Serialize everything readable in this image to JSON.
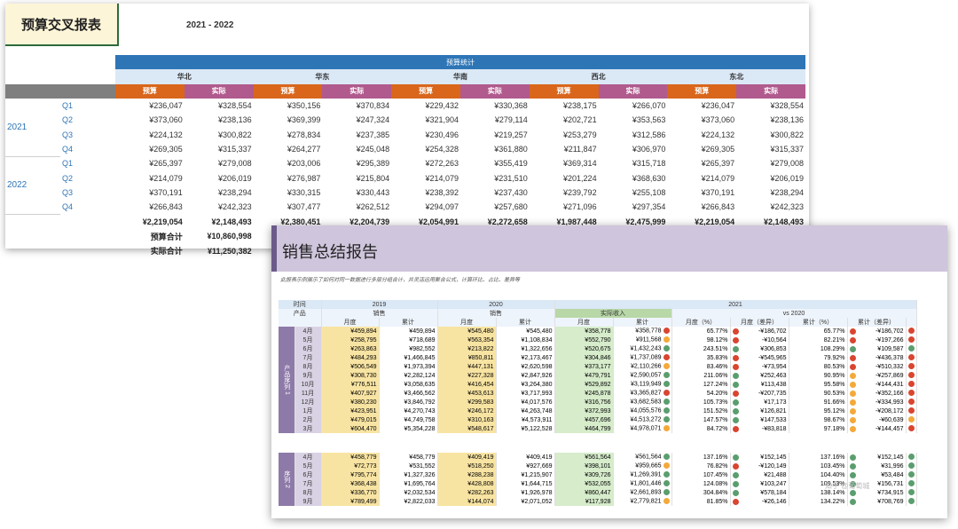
{
  "sheet1": {
    "title": "预算交叉报表",
    "range": "2021 - 2022",
    "banner": "预算统计",
    "regions": [
      "华北",
      "华东",
      "华南",
      "西北",
      "东北"
    ],
    "budget_label": "预算",
    "actual_label": "实际",
    "years": [
      {
        "year": "2021",
        "rows": [
          {
            "q": "Q1",
            "v": [
              "¥236,047",
              "¥328,554",
              "¥350,156",
              "¥370,834",
              "¥229,432",
              "¥330,368",
              "¥238,175",
              "¥266,070",
              "¥236,047",
              "¥328,554"
            ]
          },
          {
            "q": "Q2",
            "v": [
              "¥373,060",
              "¥238,136",
              "¥369,399",
              "¥247,324",
              "¥321,904",
              "¥279,114",
              "¥202,721",
              "¥353,563",
              "¥373,060",
              "¥238,136"
            ]
          },
          {
            "q": "Q3",
            "v": [
              "¥224,132",
              "¥300,822",
              "¥278,834",
              "¥237,385",
              "¥230,496",
              "¥219,257",
              "¥253,279",
              "¥312,586",
              "¥224,132",
              "¥300,822"
            ]
          },
          {
            "q": "Q4",
            "v": [
              "¥269,305",
              "¥315,337",
              "¥264,277",
              "¥245,048",
              "¥254,328",
              "¥361,880",
              "¥211,847",
              "¥306,970",
              "¥269,305",
              "¥315,337"
            ]
          }
        ]
      },
      {
        "year": "2022",
        "rows": [
          {
            "q": "Q1",
            "v": [
              "¥265,397",
              "¥279,008",
              "¥203,006",
              "¥295,389",
              "¥272,263",
              "¥355,419",
              "¥369,314",
              "¥315,718",
              "¥265,397",
              "¥279,008"
            ]
          },
          {
            "q": "Q2",
            "v": [
              "¥214,079",
              "¥206,019",
              "¥276,987",
              "¥215,804",
              "¥214,079",
              "¥231,510",
              "¥201,224",
              "¥368,630",
              "¥214,079",
              "¥206,019"
            ]
          },
          {
            "q": "Q3",
            "v": [
              "¥370,191",
              "¥238,294",
              "¥330,315",
              "¥330,443",
              "¥238,392",
              "¥237,430",
              "¥239,792",
              "¥255,108",
              "¥370,191",
              "¥238,294"
            ]
          },
          {
            "q": "Q4",
            "v": [
              "¥266,843",
              "¥242,323",
              "¥307,477",
              "¥262,512",
              "¥294,097",
              "¥257,680",
              "¥271,096",
              "¥297,354",
              "¥266,843",
              "¥242,323"
            ]
          }
        ]
      }
    ],
    "totals": [
      "¥2,219,054",
      "¥2,148,493",
      "¥2,380,451",
      "¥2,204,739",
      "¥2,054,991",
      "¥2,272,658",
      "¥1,987,448",
      "¥2,475,999",
      "¥2,219,054",
      "¥2,148,493"
    ],
    "budget_total_label": "预算合计",
    "budget_total": "¥10,860,998",
    "actual_total_label": "实际合计",
    "actual_total": "¥11,250,382"
  },
  "sheet2": {
    "title": "销售总结报告",
    "description": "此报表示例展示了如何对同一数据进行多层分组合计，并灵活运用聚合公式，计算环比、占比、差异等",
    "hdr_time": "时间",
    "hdr_product": "产品",
    "y2019": "2019",
    "y2020": "2020",
    "y2021": "2021",
    "sales": "销售",
    "actual_income": "实际收入",
    "vs2020": "vs 2020",
    "col_month": "月度",
    "col_cum": "累计",
    "col_mpct": "月度（%）",
    "col_mdiff": "月度（差异）",
    "col_cpct": "累计（%）",
    "col_cdiff": "累计（差异）",
    "group1_label": "产品序列 1",
    "group2_label": "序列 2",
    "group1": [
      {
        "m": "4月",
        "a": "¥459,894",
        "b": "¥459,894",
        "c": "¥545,480",
        "d": "¥545,480",
        "e": "¥358,778",
        "f": "¥358,778",
        "g": "65.77%",
        "h": "-¥186,702",
        "i": "65.77%",
        "j": "-¥186,702",
        "d1": "r",
        "d2": "r",
        "d3": "r",
        "d4": "r"
      },
      {
        "m": "5月",
        "a": "¥258,795",
        "b": "¥718,689",
        "c": "¥563,354",
        "d": "¥1,108,834",
        "e": "¥552,790",
        "f": "¥911,568",
        "g": "98.12%",
        "h": "-¥10,564",
        "i": "82.21%",
        "j": "-¥197,266",
        "d1": "o",
        "d2": "r",
        "d3": "r",
        "d4": "r"
      },
      {
        "m": "6月",
        "a": "¥263,863",
        "b": "¥982,552",
        "c": "¥213,822",
        "d": "¥1,322,656",
        "e": "¥520,675",
        "f": "¥1,432,243",
        "g": "243.51%",
        "h": "¥306,853",
        "i": "108.29%",
        "j": "¥109,587",
        "d1": "g",
        "d2": "g",
        "d3": "g",
        "d4": "g"
      },
      {
        "m": "7月",
        "a": "¥484,293",
        "b": "¥1,466,845",
        "c": "¥850,811",
        "d": "¥2,173,467",
        "e": "¥304,846",
        "f": "¥1,737,089",
        "g": "35.83%",
        "h": "-¥545,965",
        "i": "79.92%",
        "j": "-¥436,378",
        "d1": "r",
        "d2": "r",
        "d3": "r",
        "d4": "r"
      },
      {
        "m": "8月",
        "a": "¥506,549",
        "b": "¥1,973,394",
        "c": "¥447,131",
        "d": "¥2,620,598",
        "e": "¥373,177",
        "f": "¥2,110,266",
        "g": "83.46%",
        "h": "-¥73,954",
        "i": "80.53%",
        "j": "-¥510,332",
        "d1": "o",
        "d2": "r",
        "d3": "r",
        "d4": "r"
      },
      {
        "m": "9月",
        "a": "¥308,730",
        "b": "¥2,282,124",
        "c": "¥227,328",
        "d": "¥2,847,926",
        "e": "¥479,791",
        "f": "¥2,590,057",
        "g": "211.06%",
        "h": "¥252,463",
        "i": "90.95%",
        "j": "-¥257,869",
        "d1": "g",
        "d2": "g",
        "d3": "o",
        "d4": "r"
      },
      {
        "m": "10月",
        "a": "¥776,511",
        "b": "¥3,058,635",
        "c": "¥416,454",
        "d": "¥3,264,380",
        "e": "¥529,892",
        "f": "¥3,119,949",
        "g": "127.24%",
        "h": "¥113,438",
        "i": "95.58%",
        "j": "-¥144,431",
        "d1": "g",
        "d2": "g",
        "d3": "o",
        "d4": "r"
      },
      {
        "m": "11月",
        "a": "¥407,927",
        "b": "¥3,466,562",
        "c": "¥453,613",
        "d": "¥3,717,993",
        "e": "¥245,878",
        "f": "¥3,365,827",
        "g": "54.20%",
        "h": "-¥207,735",
        "i": "90.53%",
        "j": "-¥352,166",
        "d1": "r",
        "d2": "r",
        "d3": "o",
        "d4": "r"
      },
      {
        "m": "12月",
        "a": "¥380,230",
        "b": "¥3,846,792",
        "c": "¥299,583",
        "d": "¥4,017,576",
        "e": "¥316,756",
        "f": "¥3,682,583",
        "g": "105.73%",
        "h": "¥17,173",
        "i": "91.66%",
        "j": "-¥334,993",
        "d1": "g",
        "d2": "g",
        "d3": "o",
        "d4": "r"
      },
      {
        "m": "1月",
        "a": "¥423,951",
        "b": "¥4,270,743",
        "c": "¥246,172",
        "d": "¥4,263,748",
        "e": "¥372,993",
        "f": "¥4,055,576",
        "g": "151.52%",
        "h": "¥126,821",
        "i": "95.12%",
        "j": "-¥208,172",
        "d1": "g",
        "d2": "g",
        "d3": "o",
        "d4": "r"
      },
      {
        "m": "2月",
        "a": "¥479,015",
        "b": "¥4,749,758",
        "c": "¥310,163",
        "d": "¥4,573,911",
        "e": "¥457,696",
        "f": "¥4,513,272",
        "g": "147.57%",
        "h": "¥147,533",
        "i": "98.67%",
        "j": "-¥60,639",
        "d1": "g",
        "d2": "g",
        "d3": "o",
        "d4": "o"
      },
      {
        "m": "3月",
        "a": "¥604,470",
        "b": "¥5,354,228",
        "c": "¥548,617",
        "d": "¥5,122,528",
        "e": "¥464,799",
        "f": "¥4,978,071",
        "g": "84.72%",
        "h": "-¥83,818",
        "i": "97.18%",
        "j": "-¥144,457",
        "d1": "o",
        "d2": "r",
        "d3": "o",
        "d4": "r"
      }
    ],
    "group2": [
      {
        "m": "4月",
        "a": "¥458,779",
        "b": "¥458,779",
        "c": "¥409,419",
        "d": "¥409,419",
        "e": "¥561,564",
        "f": "¥561,564",
        "g": "137.16%",
        "h": "¥152,145",
        "i": "137.16%",
        "j": "¥152,145",
        "d1": "g",
        "d2": "g",
        "d3": "g",
        "d4": "g"
      },
      {
        "m": "5月",
        "a": "¥72,773",
        "b": "¥531,552",
        "c": "¥518,250",
        "d": "¥927,669",
        "e": "¥398,101",
        "f": "¥959,665",
        "g": "76.82%",
        "h": "-¥120,149",
        "i": "103.45%",
        "j": "¥31,996",
        "d1": "o",
        "d2": "r",
        "d3": "g",
        "d4": "g"
      },
      {
        "m": "6月",
        "a": "¥795,774",
        "b": "¥1,327,326",
        "c": "¥288,238",
        "d": "¥1,215,907",
        "e": "¥309,726",
        "f": "¥1,269,391",
        "g": "107.45%",
        "h": "¥21,488",
        "i": "104.40%",
        "j": "¥53,484",
        "d1": "g",
        "d2": "g",
        "d3": "g",
        "d4": "g"
      },
      {
        "m": "7月",
        "a": "¥368,438",
        "b": "¥1,695,764",
        "c": "¥428,808",
        "d": "¥1,644,715",
        "e": "¥532,055",
        "f": "¥1,801,446",
        "g": "124.08%",
        "h": "¥103,247",
        "i": "109.53%",
        "j": "¥156,731",
        "d1": "g",
        "d2": "g",
        "d3": "g",
        "d4": "g"
      },
      {
        "m": "8月",
        "a": "¥336,770",
        "b": "¥2,032,534",
        "c": "¥282,263",
        "d": "¥1,926,978",
        "e": "¥860,447",
        "f": "¥2,661,893",
        "g": "304.84%",
        "h": "¥578,184",
        "i": "138.14%",
        "j": "¥734,915",
        "d1": "g",
        "d2": "g",
        "d3": "g",
        "d4": "g"
      },
      {
        "m": "9月",
        "a": "¥789,499",
        "b": "¥2,822,033",
        "c": "¥144,074",
        "d": "¥2,071,052",
        "e": "¥117,928",
        "f": "¥2,779,821",
        "g": "81.85%",
        "h": "-¥26,146",
        "i": "134.22%",
        "j": "¥708,769",
        "d1": "o",
        "d2": "r",
        "d3": "g",
        "d4": "g"
      }
    ],
    "watermark": "知乎 @葡萄城"
  }
}
